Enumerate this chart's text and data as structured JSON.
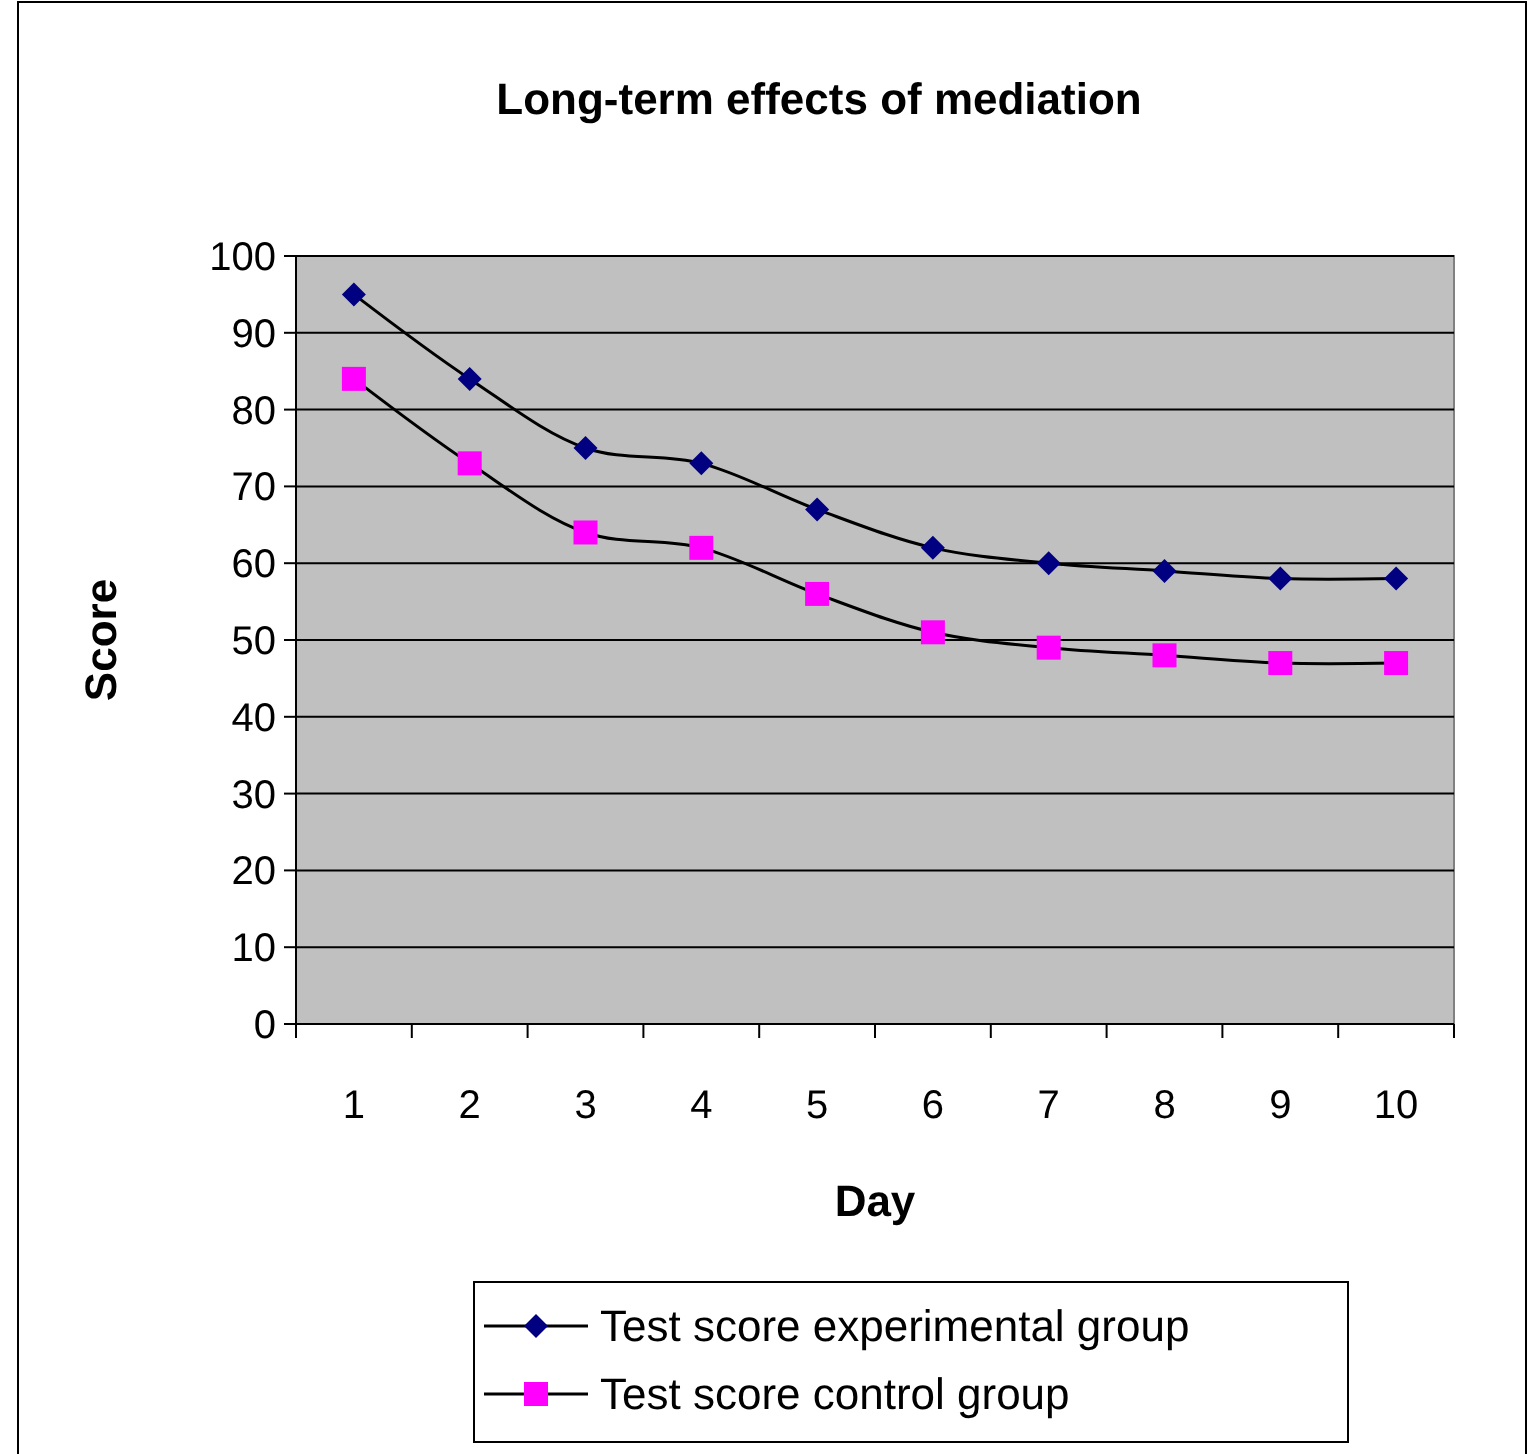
{
  "chart_data": {
    "type": "line",
    "title": "Long-term effects of mediation",
    "xlabel": "Day",
    "ylabel": "Score",
    "categories": [
      "1",
      "2",
      "3",
      "4",
      "5",
      "6",
      "7",
      "8",
      "9",
      "10"
    ],
    "series": [
      {
        "name": "Test score experimental group",
        "color": "#000080",
        "marker": "diamond",
        "values": [
          95,
          84,
          75,
          73,
          67,
          62,
          60,
          59,
          58,
          58
        ]
      },
      {
        "name": "Test score control group",
        "color": "#ff00ff",
        "marker": "square",
        "values": [
          84,
          73,
          64,
          62,
          56,
          51,
          49,
          48,
          47,
          47
        ]
      }
    ],
    "ylim": [
      0,
      100
    ],
    "yticks": [
      0,
      10,
      20,
      30,
      40,
      50,
      60,
      70,
      80,
      90,
      100
    ],
    "grid": "y",
    "legend": "bottom",
    "line_style": "solid"
  }
}
